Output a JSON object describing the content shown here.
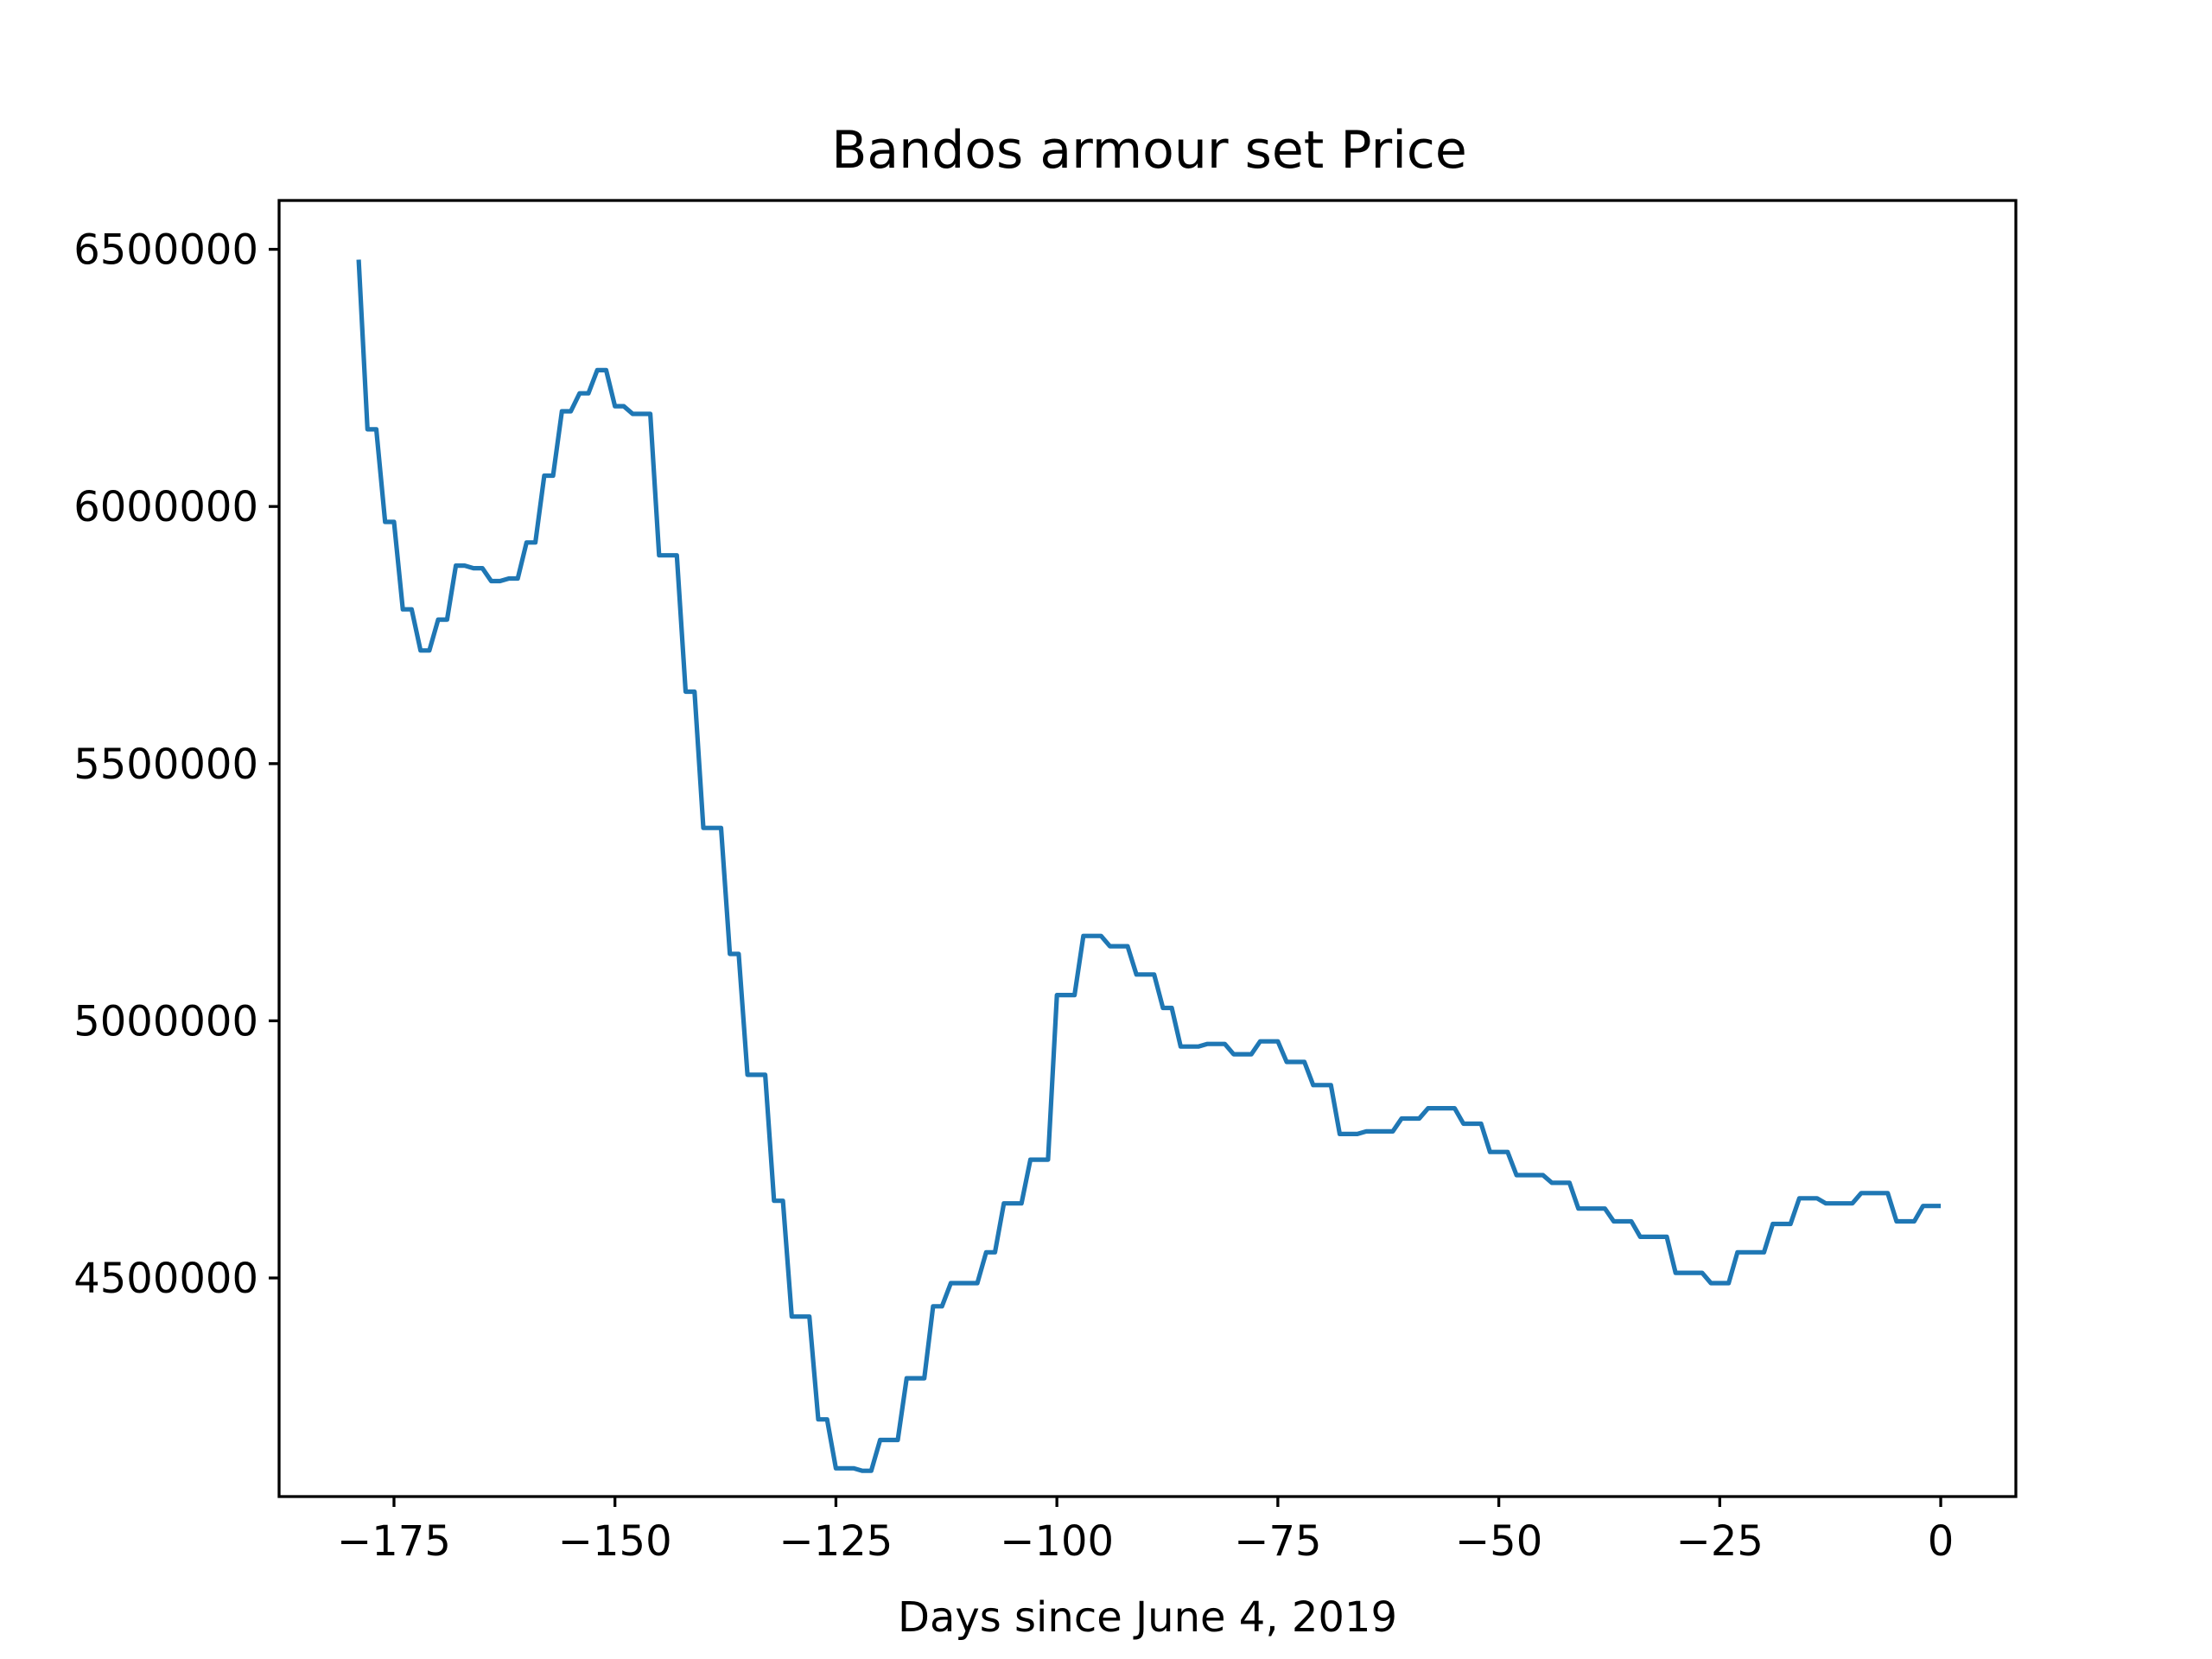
{
  "chart_data": {
    "type": "line",
    "title": "Bandos armour set Price",
    "xlabel": "Days since June 4, 2019",
    "ylabel": "",
    "xlim": [
      -188,
      8.5
    ],
    "ylim": [
      4075000,
      6595000
    ],
    "xticks": [
      -175,
      -150,
      -125,
      -100,
      -75,
      -50,
      -25,
      0
    ],
    "xtick_labels": [
      "−175",
      "−150",
      "−125",
      "−100",
      "−75",
      "−50",
      "−25",
      "0"
    ],
    "yticks": [
      4500000,
      5000000,
      5500000,
      6000000,
      6500000
    ],
    "ytick_labels": [
      "4500000",
      "5000000",
      "5500000",
      "6000000",
      "6500000"
    ],
    "grid": false,
    "legend": "none",
    "series": [
      {
        "color": "#1f77b4",
        "points": [
          [
            -179,
            6480000
          ],
          [
            -178,
            6150000
          ],
          [
            -177,
            6150000
          ],
          [
            -176,
            5970000
          ],
          [
            -175,
            5970000
          ],
          [
            -174,
            5800000
          ],
          [
            -173,
            5800000
          ],
          [
            -172,
            5720000
          ],
          [
            -171,
            5720000
          ],
          [
            -170,
            5780000
          ],
          [
            -169,
            5780000
          ],
          [
            -168,
            5885000
          ],
          [
            -167,
            5885000
          ],
          [
            -166,
            5880000
          ],
          [
            -165,
            5880000
          ],
          [
            -164,
            5855000
          ],
          [
            -163,
            5855000
          ],
          [
            -162,
            5860000
          ],
          [
            -161,
            5860000
          ],
          [
            -160,
            5930000
          ],
          [
            -159,
            5930000
          ],
          [
            -158,
            6060000
          ],
          [
            -157,
            6060000
          ],
          [
            -156,
            6185000
          ],
          [
            -155,
            6185000
          ],
          [
            -154,
            6220000
          ],
          [
            -153,
            6220000
          ],
          [
            -152,
            6265000
          ],
          [
            -151,
            6265000
          ],
          [
            -150,
            6195000
          ],
          [
            -149,
            6195000
          ],
          [
            -148,
            6180000
          ],
          [
            -147,
            6180000
          ],
          [
            -146,
            6180000
          ],
          [
            -145,
            5905000
          ],
          [
            -144,
            5905000
          ],
          [
            -143,
            5905000
          ],
          [
            -142,
            5640000
          ],
          [
            -141,
            5640000
          ],
          [
            -140,
            5375000
          ],
          [
            -139,
            5375000
          ],
          [
            -138,
            5375000
          ],
          [
            -137,
            5130000
          ],
          [
            -136,
            5130000
          ],
          [
            -135,
            4895000
          ],
          [
            -134,
            4895000
          ],
          [
            -133,
            4895000
          ],
          [
            -132,
            4650000
          ],
          [
            -131,
            4650000
          ],
          [
            -130,
            4425000
          ],
          [
            -129,
            4425000
          ],
          [
            -128,
            4425000
          ],
          [
            -127,
            4225000
          ],
          [
            -126,
            4225000
          ],
          [
            -125,
            4130000
          ],
          [
            -124,
            4130000
          ],
          [
            -123,
            4130000
          ],
          [
            -122,
            4125000
          ],
          [
            -121,
            4125000
          ],
          [
            -120,
            4185000
          ],
          [
            -119,
            4185000
          ],
          [
            -118,
            4185000
          ],
          [
            -117,
            4305000
          ],
          [
            -116,
            4305000
          ],
          [
            -115,
            4305000
          ],
          [
            -114,
            4445000
          ],
          [
            -113,
            4445000
          ],
          [
            -112,
            4490000
          ],
          [
            -111,
            4490000
          ],
          [
            -110,
            4490000
          ],
          [
            -109,
            4490000
          ],
          [
            -108,
            4550000
          ],
          [
            -107,
            4550000
          ],
          [
            -106,
            4645000
          ],
          [
            -105,
            4645000
          ],
          [
            -104,
            4645000
          ],
          [
            -103,
            4730000
          ],
          [
            -102,
            4730000
          ],
          [
            -101,
            4730000
          ],
          [
            -100,
            5050000
          ],
          [
            -99,
            5050000
          ],
          [
            -98,
            5050000
          ],
          [
            -97,
            5165000
          ],
          [
            -96,
            5165000
          ],
          [
            -95,
            5165000
          ],
          [
            -94,
            5145000
          ],
          [
            -93,
            5145000
          ],
          [
            -92,
            5145000
          ],
          [
            -91,
            5090000
          ],
          [
            -90,
            5090000
          ],
          [
            -89,
            5090000
          ],
          [
            -88,
            5025000
          ],
          [
            -87,
            5025000
          ],
          [
            -86,
            4950000
          ],
          [
            -85,
            4950000
          ],
          [
            -84,
            4950000
          ],
          [
            -83,
            4955000
          ],
          [
            -82,
            4955000
          ],
          [
            -81,
            4955000
          ],
          [
            -80,
            4935000
          ],
          [
            -79,
            4935000
          ],
          [
            -78,
            4935000
          ],
          [
            -77,
            4960000
          ],
          [
            -76,
            4960000
          ],
          [
            -75,
            4960000
          ],
          [
            -74,
            4920000
          ],
          [
            -73,
            4920000
          ],
          [
            -72,
            4920000
          ],
          [
            -71,
            4875000
          ],
          [
            -70,
            4875000
          ],
          [
            -69,
            4875000
          ],
          [
            -68,
            4780000
          ],
          [
            -67,
            4780000
          ],
          [
            -66,
            4780000
          ],
          [
            -65,
            4785000
          ],
          [
            -64,
            4785000
          ],
          [
            -63,
            4785000
          ],
          [
            -62,
            4785000
          ],
          [
            -61,
            4810000
          ],
          [
            -60,
            4810000
          ],
          [
            -59,
            4810000
          ],
          [
            -58,
            4830000
          ],
          [
            -57,
            4830000
          ],
          [
            -56,
            4830000
          ],
          [
            -55,
            4830000
          ],
          [
            -54,
            4800000
          ],
          [
            -53,
            4800000
          ],
          [
            -52,
            4800000
          ],
          [
            -51,
            4745000
          ],
          [
            -50,
            4745000
          ],
          [
            -49,
            4745000
          ],
          [
            -48,
            4700000
          ],
          [
            -47,
            4700000
          ],
          [
            -46,
            4700000
          ],
          [
            -45,
            4700000
          ],
          [
            -44,
            4685000
          ],
          [
            -43,
            4685000
          ],
          [
            -42,
            4685000
          ],
          [
            -41,
            4635000
          ],
          [
            -40,
            4635000
          ],
          [
            -39,
            4635000
          ],
          [
            -38,
            4635000
          ],
          [
            -37,
            4610000
          ],
          [
            -36,
            4610000
          ],
          [
            -35,
            4610000
          ],
          [
            -34,
            4580000
          ],
          [
            -33,
            4580000
          ],
          [
            -32,
            4580000
          ],
          [
            -31,
            4580000
          ],
          [
            -30,
            4510000
          ],
          [
            -29,
            4510000
          ],
          [
            -28,
            4510000
          ],
          [
            -27,
            4510000
          ],
          [
            -26,
            4490000
          ],
          [
            -25,
            4490000
          ],
          [
            -24,
            4490000
          ],
          [
            -23,
            4550000
          ],
          [
            -22,
            4550000
          ],
          [
            -21,
            4550000
          ],
          [
            -20,
            4550000
          ],
          [
            -19,
            4605000
          ],
          [
            -18,
            4605000
          ],
          [
            -17,
            4605000
          ],
          [
            -16,
            4655000
          ],
          [
            -15,
            4655000
          ],
          [
            -14,
            4655000
          ],
          [
            -13,
            4645000
          ],
          [
            -12,
            4645000
          ],
          [
            -11,
            4645000
          ],
          [
            -10,
            4645000
          ],
          [
            -9,
            4665000
          ],
          [
            -8,
            4665000
          ],
          [
            -7,
            4665000
          ],
          [
            -6,
            4665000
          ],
          [
            -5,
            4610000
          ],
          [
            -4,
            4610000
          ],
          [
            -3,
            4610000
          ],
          [
            -2,
            4640000
          ],
          [
            -1,
            4640000
          ],
          [
            0,
            4640000
          ]
        ]
      }
    ]
  }
}
